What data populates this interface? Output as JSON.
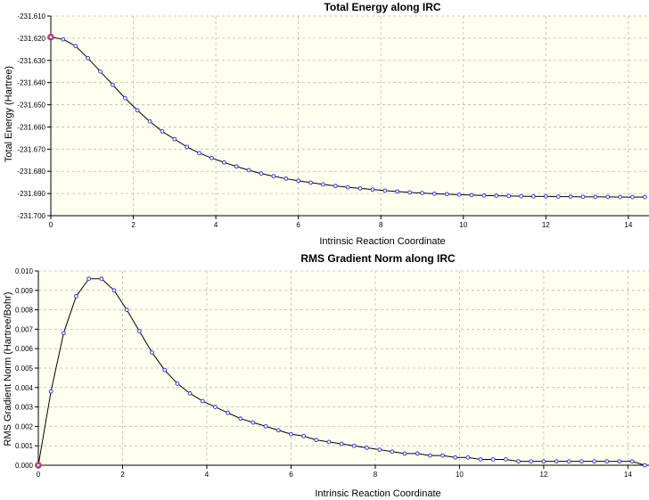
{
  "chart_data": [
    {
      "type": "line",
      "title": "Total Energy along IRC",
      "xlabel": "Intrinsic Reaction Coordinate",
      "ylabel": "Total Energy (Hartree)",
      "xlim": [
        0,
        14.5
      ],
      "ylim": [
        -231.7,
        -231.61
      ],
      "xticks": [
        0,
        2,
        4,
        6,
        8,
        10,
        12,
        14
      ],
      "xtick_labels": [
        "0",
        "2",
        "4",
        "6",
        "8",
        "10",
        "12",
        "14"
      ],
      "yticks": [
        -231.61,
        -231.62,
        -231.63,
        -231.64,
        -231.65,
        -231.66,
        -231.67,
        -231.68,
        -231.69,
        -231.7
      ],
      "ytick_labels": [
        "-231.610",
        "-231.620",
        "-231.630",
        "-231.640",
        "-231.650",
        "-231.660",
        "-231.670",
        "-231.680",
        "-231.690",
        "-231.700"
      ],
      "grid": true,
      "highlight_first_point": true,
      "colors": {
        "plot_bg": "#fffff0",
        "line": "#000000",
        "marker": "#3a3ad6",
        "highlight": "#e8384f"
      },
      "series": [
        {
          "x": [
            0,
            0.3,
            0.6,
            0.9,
            1.2,
            1.5,
            1.8,
            2.1,
            2.4,
            2.7,
            3.0,
            3.3,
            3.6,
            3.9,
            4.2,
            4.5,
            4.8,
            5.1,
            5.4,
            5.7,
            6.0,
            6.3,
            6.6,
            6.9,
            7.2,
            7.5,
            7.8,
            8.1,
            8.4,
            8.7,
            9.0,
            9.3,
            9.6,
            9.9,
            10.2,
            10.5,
            10.8,
            11.1,
            11.4,
            11.7,
            12.0,
            12.3,
            12.6,
            12.9,
            13.2,
            13.5,
            13.8,
            14.1,
            14.4
          ],
          "values": [
            -231.6195,
            -231.6205,
            -231.6235,
            -231.629,
            -231.635,
            -231.641,
            -231.647,
            -231.6525,
            -231.6575,
            -231.662,
            -231.6655,
            -231.669,
            -231.6718,
            -231.674,
            -231.676,
            -231.6778,
            -231.6795,
            -231.681,
            -231.6822,
            -231.6833,
            -231.6843,
            -231.6851,
            -231.6859,
            -231.6866,
            -231.6872,
            -231.6877,
            -231.6882,
            -231.6887,
            -231.6891,
            -231.6895,
            -231.6898,
            -231.6901,
            -231.6903,
            -231.6905,
            -231.6907,
            -231.6909,
            -231.691,
            -231.6911,
            -231.6912,
            -231.6913,
            -231.6913,
            -231.6914,
            -231.6914,
            -231.6915,
            -231.6915,
            -231.6915,
            -231.6916,
            -231.6916,
            -231.6916
          ]
        }
      ]
    },
    {
      "type": "line",
      "title": "RMS Gradient Norm along IRC",
      "xlabel": "Intrinsic Reaction Coordinate",
      "ylabel": "RMS Gradient Norm (Hartree/Bohr)",
      "xlim": [
        0,
        14.5
      ],
      "ylim": [
        0,
        0.01
      ],
      "xticks": [
        0,
        2,
        4,
        6,
        8,
        10,
        12,
        14
      ],
      "xtick_labels": [
        "0",
        "2",
        "4",
        "6",
        "8",
        "10",
        "12",
        "14"
      ],
      "yticks": [
        0,
        0.001,
        0.002,
        0.003,
        0.004,
        0.005,
        0.006,
        0.007,
        0.008,
        0.009,
        0.01
      ],
      "ytick_labels": [
        "0.000",
        "0.001",
        "0.002",
        "0.003",
        "0.004",
        "0.005",
        "0.006",
        "0.007",
        "0.008",
        "0.009",
        "0.010"
      ],
      "grid": true,
      "highlight_first_point": true,
      "colors": {
        "plot_bg": "#fffff0",
        "line": "#000000",
        "marker": "#3a3ad6",
        "highlight": "#e8384f"
      },
      "series": [
        {
          "x": [
            0,
            0.3,
            0.6,
            0.9,
            1.2,
            1.5,
            1.8,
            2.1,
            2.4,
            2.7,
            3.0,
            3.3,
            3.6,
            3.9,
            4.2,
            4.5,
            4.8,
            5.1,
            5.4,
            5.7,
            6.0,
            6.3,
            6.6,
            6.9,
            7.2,
            7.5,
            7.8,
            8.1,
            8.4,
            8.7,
            9.0,
            9.3,
            9.6,
            9.9,
            10.2,
            10.5,
            10.8,
            11.1,
            11.4,
            11.7,
            12.0,
            12.3,
            12.6,
            12.9,
            13.2,
            13.5,
            13.8,
            14.1,
            14.4
          ],
          "values": [
            0.0,
            0.0038,
            0.0068,
            0.0087,
            0.0096,
            0.0096,
            0.009,
            0.008,
            0.0069,
            0.0058,
            0.0049,
            0.0042,
            0.0037,
            0.0033,
            0.003,
            0.0027,
            0.0024,
            0.0022,
            0.002,
            0.0018,
            0.0016,
            0.0015,
            0.0013,
            0.0012,
            0.0011,
            0.001,
            0.0009,
            0.0008,
            0.0007,
            0.0006,
            0.0006,
            0.0005,
            0.0005,
            0.0004,
            0.0004,
            0.0003,
            0.0003,
            0.0003,
            0.0002,
            0.0002,
            0.0002,
            0.0002,
            0.0002,
            0.0002,
            0.0002,
            0.0002,
            0.0002,
            0.0002,
            0.0
          ]
        }
      ]
    }
  ]
}
